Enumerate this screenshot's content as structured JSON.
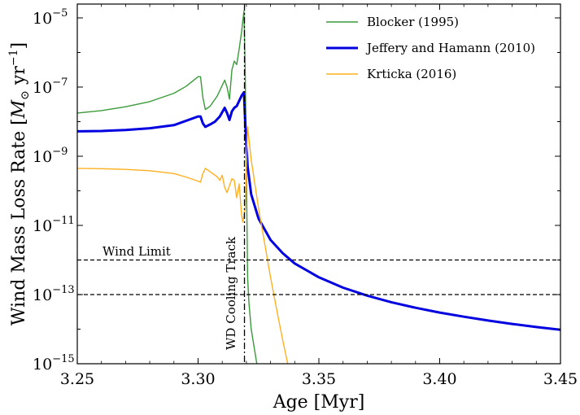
{
  "chart_data": {
    "type": "line",
    "title": "",
    "xlabel": "Age [Myr]",
    "ylabel": "Wind Mass Loss Rate [M⊙ yr⁻¹]",
    "xlim": [
      3.25,
      3.45
    ],
    "ylim_log10": [
      -15,
      -4.6
    ],
    "y_scale": "log",
    "x_ticks": [
      {
        "value": 3.25,
        "label": "3.25"
      },
      {
        "value": 3.3,
        "label": "3.30"
      },
      {
        "value": 3.35,
        "label": "3.35"
      },
      {
        "value": 3.4,
        "label": "3.40"
      },
      {
        "value": 3.45,
        "label": "3.45"
      }
    ],
    "y_ticks": [
      {
        "exp": -5,
        "base": "10",
        "sup": "−5"
      },
      {
        "exp": -7,
        "base": "10",
        "sup": "−7"
      },
      {
        "exp": -9,
        "base": "10",
        "sup": "−9"
      },
      {
        "exp": -11,
        "base": "10",
        "sup": "−11"
      },
      {
        "exp": -13,
        "base": "10",
        "sup": "−13"
      },
      {
        "exp": -15,
        "base": "10",
        "sup": "−15"
      }
    ],
    "legend_position": "top-right",
    "series": [
      {
        "name": "Blocker (1995)",
        "color": "#3a9a3a",
        "points": [
          [
            3.25,
            -7.75
          ],
          [
            3.26,
            -7.68
          ],
          [
            3.27,
            -7.57
          ],
          [
            3.28,
            -7.42
          ],
          [
            3.29,
            -7.18
          ],
          [
            3.295,
            -6.98
          ],
          [
            3.3,
            -6.7
          ],
          [
            3.301,
            -6.7
          ],
          [
            3.302,
            -7.3
          ],
          [
            3.303,
            -7.65
          ],
          [
            3.305,
            -7.55
          ],
          [
            3.308,
            -7.25
          ],
          [
            3.311,
            -6.8
          ],
          [
            3.312,
            -7.0
          ],
          [
            3.313,
            -7.35
          ],
          [
            3.314,
            -6.5
          ],
          [
            3.315,
            -6.25
          ],
          [
            3.316,
            -6.35
          ],
          [
            3.317,
            -5.9
          ],
          [
            3.318,
            -5.4
          ],
          [
            3.319,
            -4.8
          ],
          [
            3.3195,
            -6.5
          ],
          [
            3.3205,
            -12.5
          ],
          [
            3.321,
            -13.2
          ],
          [
            3.322,
            -14.0
          ],
          [
            3.325,
            -15.3
          ]
        ]
      },
      {
        "name": "Jeffery and Hamann (2010)",
        "color": "#0000e0",
        "points": [
          [
            3.25,
            -8.28
          ],
          [
            3.26,
            -8.27
          ],
          [
            3.27,
            -8.24
          ],
          [
            3.28,
            -8.19
          ],
          [
            3.29,
            -8.1
          ],
          [
            3.3,
            -7.85
          ],
          [
            3.301,
            -7.85
          ],
          [
            3.302,
            -8.05
          ],
          [
            3.303,
            -8.15
          ],
          [
            3.305,
            -8.08
          ],
          [
            3.307,
            -8.0
          ],
          [
            3.309,
            -7.85
          ],
          [
            3.311,
            -7.6
          ],
          [
            3.312,
            -7.75
          ],
          [
            3.313,
            -7.95
          ],
          [
            3.314,
            -7.7
          ],
          [
            3.315,
            -7.6
          ],
          [
            3.316,
            -7.55
          ],
          [
            3.317,
            -7.4
          ],
          [
            3.318,
            -7.25
          ],
          [
            3.319,
            -7.15
          ],
          [
            3.3195,
            -8.0
          ],
          [
            3.3205,
            -9.3
          ],
          [
            3.322,
            -10.1
          ],
          [
            3.325,
            -10.8
          ],
          [
            3.33,
            -11.42
          ],
          [
            3.335,
            -11.8
          ],
          [
            3.34,
            -12.1
          ],
          [
            3.35,
            -12.5
          ],
          [
            3.36,
            -12.8
          ],
          [
            3.37,
            -13.03
          ],
          [
            3.38,
            -13.22
          ],
          [
            3.39,
            -13.38
          ],
          [
            3.4,
            -13.52
          ],
          [
            3.41,
            -13.64
          ],
          [
            3.42,
            -13.75
          ],
          [
            3.43,
            -13.85
          ],
          [
            3.44,
            -13.94
          ],
          [
            3.45,
            -14.02
          ]
        ]
      },
      {
        "name": "Krticka (2016)",
        "color": "#ffb020",
        "points": [
          [
            3.25,
            -9.35
          ],
          [
            3.26,
            -9.36
          ],
          [
            3.27,
            -9.38
          ],
          [
            3.28,
            -9.42
          ],
          [
            3.29,
            -9.5
          ],
          [
            3.295,
            -9.6
          ],
          [
            3.3,
            -9.72
          ],
          [
            3.301,
            -9.75
          ],
          [
            3.302,
            -9.5
          ],
          [
            3.303,
            -9.35
          ],
          [
            3.305,
            -9.45
          ],
          [
            3.308,
            -9.6
          ],
          [
            3.309,
            -9.7
          ],
          [
            3.31,
            -9.55
          ],
          [
            3.311,
            -9.9
          ],
          [
            3.312,
            -10.05
          ],
          [
            3.313,
            -9.85
          ],
          [
            3.314,
            -9.65
          ],
          [
            3.315,
            -9.7
          ],
          [
            3.316,
            -10.2
          ],
          [
            3.317,
            -9.8
          ],
          [
            3.318,
            -10.7
          ],
          [
            3.3185,
            -10.9
          ],
          [
            3.3195,
            -10.5
          ],
          [
            3.3205,
            -8.15
          ],
          [
            3.322,
            -9.1
          ],
          [
            3.325,
            -10.5
          ],
          [
            3.33,
            -12.5
          ],
          [
            3.333,
            -13.6
          ],
          [
            3.335,
            -14.3
          ],
          [
            3.338,
            -15.3
          ]
        ]
      }
    ],
    "reference_lines": [
      {
        "kind": "horizontal",
        "log10_y": -12.0,
        "style": "dashed"
      },
      {
        "kind": "horizontal",
        "log10_y": -13.0,
        "style": "dashed"
      },
      {
        "kind": "vertical",
        "x": 3.3192,
        "style": "dashdot"
      }
    ],
    "annotations": {
      "wind_limit": "Wind Limit",
      "cooling_track": "WD Cooling Track"
    }
  }
}
